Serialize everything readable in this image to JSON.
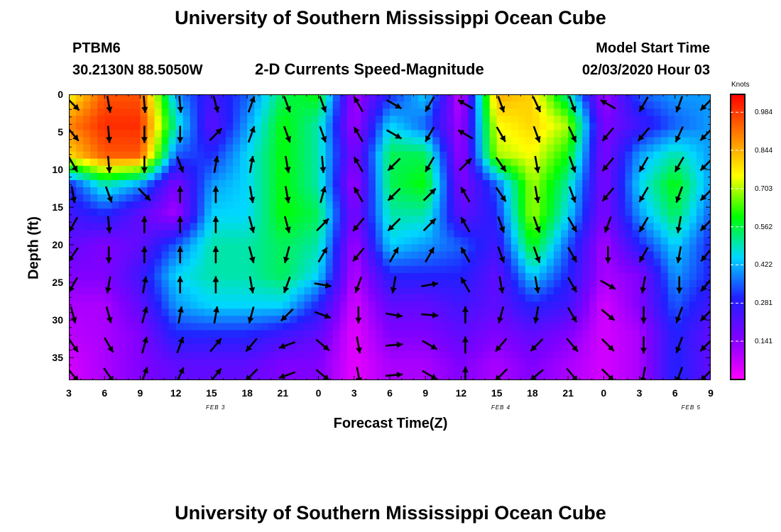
{
  "header": {
    "title": "University of Southern Mississippi Ocean Cube",
    "station": "PTBM6",
    "location": "30.2130N 88.5050W",
    "plot_title": "2-D Currents Speed-Magnitude",
    "model_start_label": "Model Start Time",
    "model_start_value": "02/03/2020 Hour 03"
  },
  "footer": {
    "title": "University of Southern Mississippi Ocean Cube"
  },
  "colors": {
    "scale": [
      "#ff00ff",
      "#8000ff",
      "#2020ff",
      "#00d8ff",
      "#00ff00",
      "#ffff00",
      "#ff8000",
      "#ff0000"
    ],
    "arrow": "#000000"
  },
  "chart_data": {
    "type": "heatmap",
    "xlabel": "Forecast Time(Z)",
    "ylabel": "Depth (ft)",
    "x_tick_labels": [
      "3",
      "6",
      "9",
      "12",
      "15",
      "18",
      "21",
      "0",
      "6",
      "9",
      "12",
      "15",
      "18",
      "21",
      "0",
      "3",
      "6",
      "9"
    ],
    "x_tick_labels_full": [
      "3",
      "6",
      "9",
      "12",
      "15",
      "18",
      "21",
      "0",
      "3",
      "6",
      "9",
      "12",
      "15",
      "18",
      "21",
      "0",
      "3",
      "6",
      "9"
    ],
    "x_range_hours": [
      0,
      54
    ],
    "day_labels": [
      {
        "text": "FEB 3",
        "hour": 9
      },
      {
        "text": "FEB 4",
        "hour": 33
      },
      {
        "text": "FEB 5",
        "hour": 49
      }
    ],
    "y_ticks": [
      "0",
      "5",
      "10",
      "15",
      "20",
      "25",
      "30",
      "35"
    ],
    "y_range_ft": [
      0,
      38
    ],
    "y_inverted": true,
    "colorbar": {
      "unit": "Knots",
      "min": 0,
      "max": 1.05,
      "tick_labels": [
        "0.984",
        "0.844",
        "0.703",
        "0.562",
        "0.422",
        "0.281",
        "0.141"
      ]
    },
    "depths_ft": [
      0,
      4,
      8,
      12,
      16,
      20,
      24,
      28,
      32,
      36
    ],
    "hours": [
      0,
      3,
      6,
      9,
      12,
      15,
      18,
      21,
      24,
      27,
      30,
      33,
      36,
      39,
      42,
      45,
      48,
      51,
      54
    ],
    "speed_knots": [
      [
        0.75,
        0.95,
        0.95,
        0.4,
        0.25,
        0.35,
        0.55,
        0.6,
        0.1,
        0.3,
        0.45,
        0.05,
        0.85,
        0.8,
        0.5,
        0.1,
        0.35,
        0.4,
        0.4
      ],
      [
        0.9,
        1.0,
        1.0,
        0.5,
        0.2,
        0.4,
        0.6,
        0.5,
        0.1,
        0.45,
        0.35,
        0.1,
        0.75,
        0.8,
        0.7,
        0.15,
        0.25,
        0.35,
        0.4
      ],
      [
        0.8,
        0.95,
        0.95,
        0.35,
        0.3,
        0.45,
        0.6,
        0.5,
        0.15,
        0.55,
        0.55,
        0.1,
        0.7,
        0.75,
        0.6,
        0.15,
        0.4,
        0.5,
        0.4
      ],
      [
        0.3,
        0.5,
        0.4,
        0.15,
        0.4,
        0.45,
        0.6,
        0.5,
        0.1,
        0.55,
        0.6,
        0.15,
        0.35,
        0.7,
        0.5,
        0.15,
        0.45,
        0.6,
        0.4
      ],
      [
        0.25,
        0.3,
        0.2,
        0.1,
        0.45,
        0.45,
        0.6,
        0.55,
        0.15,
        0.5,
        0.5,
        0.2,
        0.3,
        0.7,
        0.45,
        0.15,
        0.4,
        0.55,
        0.35
      ],
      [
        0.2,
        0.15,
        0.2,
        0.35,
        0.5,
        0.5,
        0.55,
        0.5,
        0.1,
        0.45,
        0.4,
        0.35,
        0.25,
        0.6,
        0.35,
        0.1,
        0.3,
        0.45,
        0.3
      ],
      [
        0.15,
        0.15,
        0.25,
        0.45,
        0.5,
        0.5,
        0.55,
        0.45,
        0.08,
        0.3,
        0.3,
        0.3,
        0.2,
        0.45,
        0.3,
        0.1,
        0.15,
        0.4,
        0.3
      ],
      [
        0.1,
        0.1,
        0.2,
        0.4,
        0.45,
        0.45,
        0.45,
        0.3,
        0.05,
        0.2,
        0.2,
        0.25,
        0.2,
        0.3,
        0.25,
        0.05,
        0.15,
        0.35,
        0.25
      ],
      [
        0.08,
        0.1,
        0.15,
        0.3,
        0.3,
        0.3,
        0.25,
        0.2,
        0.03,
        0.15,
        0.15,
        0.2,
        0.15,
        0.2,
        0.15,
        0.05,
        0.1,
        0.3,
        0.2
      ],
      [
        0.05,
        0.1,
        0.15,
        0.2,
        0.2,
        0.2,
        0.15,
        0.15,
        0.03,
        0.1,
        0.1,
        0.15,
        0.1,
        0.15,
        0.1,
        0.05,
        0.1,
        0.3,
        0.2
      ]
    ],
    "direction_deg": [
      [
        135,
        170,
        175,
        175,
        165,
        20,
        160,
        160,
        330,
        120,
        210,
        300,
        160,
        155,
        160,
        300,
        210,
        200,
        225
      ],
      [
        140,
        175,
        180,
        180,
        45,
        20,
        160,
        160,
        330,
        120,
        210,
        300,
        150,
        160,
        155,
        220,
        220,
        205,
        225
      ],
      [
        150,
        175,
        180,
        160,
        10,
        10,
        170,
        175,
        330,
        225,
        210,
        45,
        145,
        170,
        160,
        220,
        210,
        210,
        225
      ],
      [
        170,
        160,
        135,
        0,
        0,
        170,
        170,
        15,
        330,
        225,
        45,
        330,
        145,
        170,
        160,
        220,
        210,
        200,
        225
      ],
      [
        210,
        175,
        0,
        0,
        0,
        165,
        165,
        45,
        220,
        225,
        45,
        330,
        160,
        160,
        150,
        200,
        210,
        190,
        225
      ],
      [
        215,
        180,
        0,
        0,
        0,
        165,
        195,
        30,
        220,
        30,
        30,
        330,
        160,
        160,
        150,
        180,
        210,
        190,
        220
      ],
      [
        210,
        190,
        10,
        0,
        0,
        170,
        200,
        100,
        200,
        190,
        80,
        330,
        170,
        170,
        150,
        120,
        190,
        180,
        220
      ],
      [
        165,
        165,
        15,
        10,
        10,
        195,
        225,
        110,
        180,
        100,
        95,
        0,
        195,
        190,
        150,
        130,
        180,
        200,
        225
      ],
      [
        145,
        150,
        15,
        20,
        40,
        220,
        250,
        130,
        170,
        85,
        120,
        0,
        220,
        225,
        140,
        135,
        180,
        200,
        225
      ],
      [
        140,
        145,
        20,
        25,
        40,
        225,
        250,
        130,
        170,
        85,
        120,
        0,
        225,
        230,
        140,
        135,
        190,
        200,
        225
      ]
    ]
  }
}
